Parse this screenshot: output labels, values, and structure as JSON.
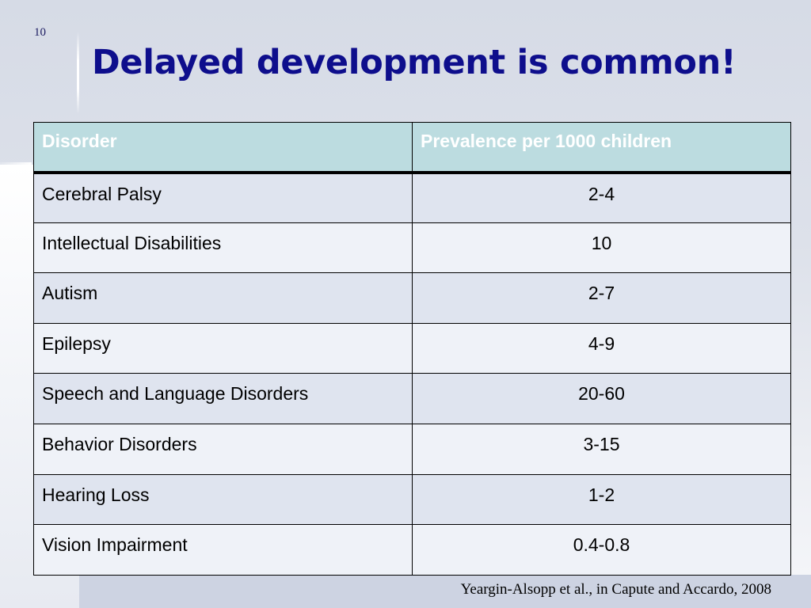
{
  "slide": {
    "number": "10",
    "title": "Delayed development is common!",
    "citation": "Yeargin-Alsopp et al., in Capute and Accardo, 2008",
    "colors": {
      "title": "#0e0e8c",
      "header_fill": "#bcdce0",
      "row_fill_a": "#dfe4ef",
      "row_fill_b": "#eff2f8"
    }
  },
  "table": {
    "headers": [
      "Disorder",
      "Prevalence per 1000 children"
    ],
    "rows": [
      {
        "disorder": "Cerebral Palsy",
        "prevalence": "2-4"
      },
      {
        "disorder": "Intellectual Disabilities",
        "prevalence": "10"
      },
      {
        "disorder": "Autism",
        "prevalence": "2-7"
      },
      {
        "disorder": "Epilepsy",
        "prevalence": "4-9"
      },
      {
        "disorder": "Speech and Language Disorders",
        "prevalence": "20-60"
      },
      {
        "disorder": "Behavior Disorders",
        "prevalence": "3-15"
      },
      {
        "disorder": "Hearing Loss",
        "prevalence": "1-2"
      },
      {
        "disorder": "Vision Impairment",
        "prevalence": "0.4-0.8"
      }
    ]
  }
}
